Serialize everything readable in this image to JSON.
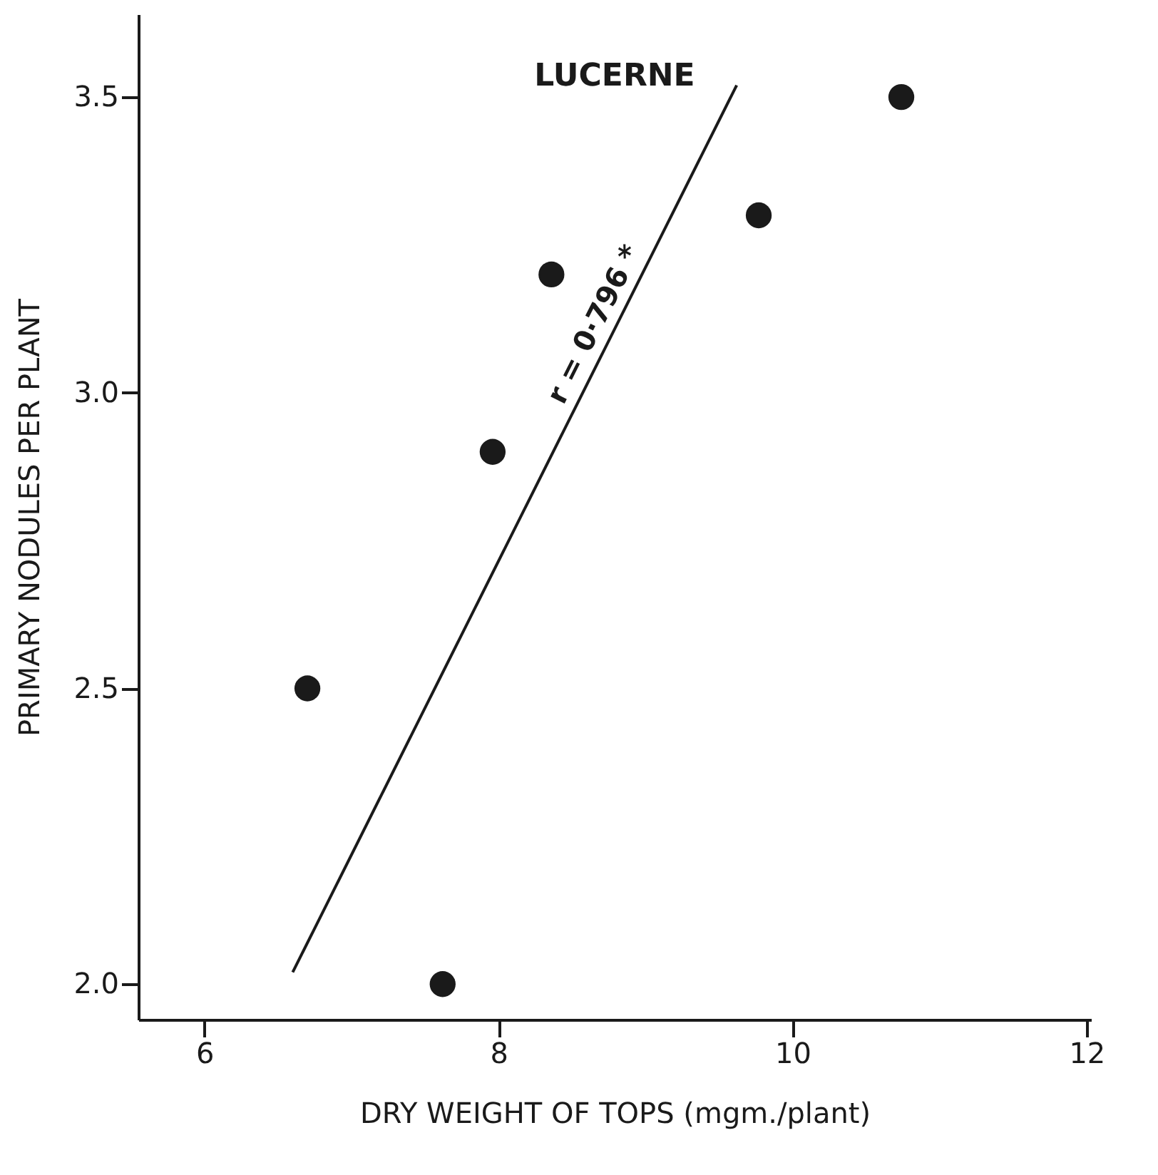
{
  "chart_data": {
    "type": "scatter",
    "title": "LUCERNE",
    "xlabel": "DRY   WEIGHT   OF   TOPS  (mgm./plant)",
    "ylabel": "PRIMARY   NODULES   PER   PLANT",
    "x": [
      6.7,
      7.62,
      7.96,
      8.36,
      9.77,
      10.74
    ],
    "series": [
      {
        "type": "scatter",
        "color": "#1a1a1a",
        "marker": "circle",
        "values": [
          2.5,
          2.0,
          2.9,
          3.2,
          3.3,
          3.5
        ]
      },
      {
        "type": "line",
        "color": "#1a1a1a",
        "marker": "none",
        "x": [
          6.6,
          9.62
        ],
        "values": [
          2.02,
          3.52
        ]
      }
    ],
    "annotations": [
      "r = 0·796 *"
    ],
    "xlim": [
      5.55,
      12.03
    ],
    "xticks": [
      6,
      8,
      10,
      12
    ],
    "ylim": [
      1.94,
      3.64
    ],
    "yticks": [
      {
        "value": 2,
        "label": "2.0"
      },
      2.5,
      {
        "value": 3,
        "label": "3.0"
      },
      3.5
    ],
    "grid": false,
    "line_style": "solid"
  }
}
